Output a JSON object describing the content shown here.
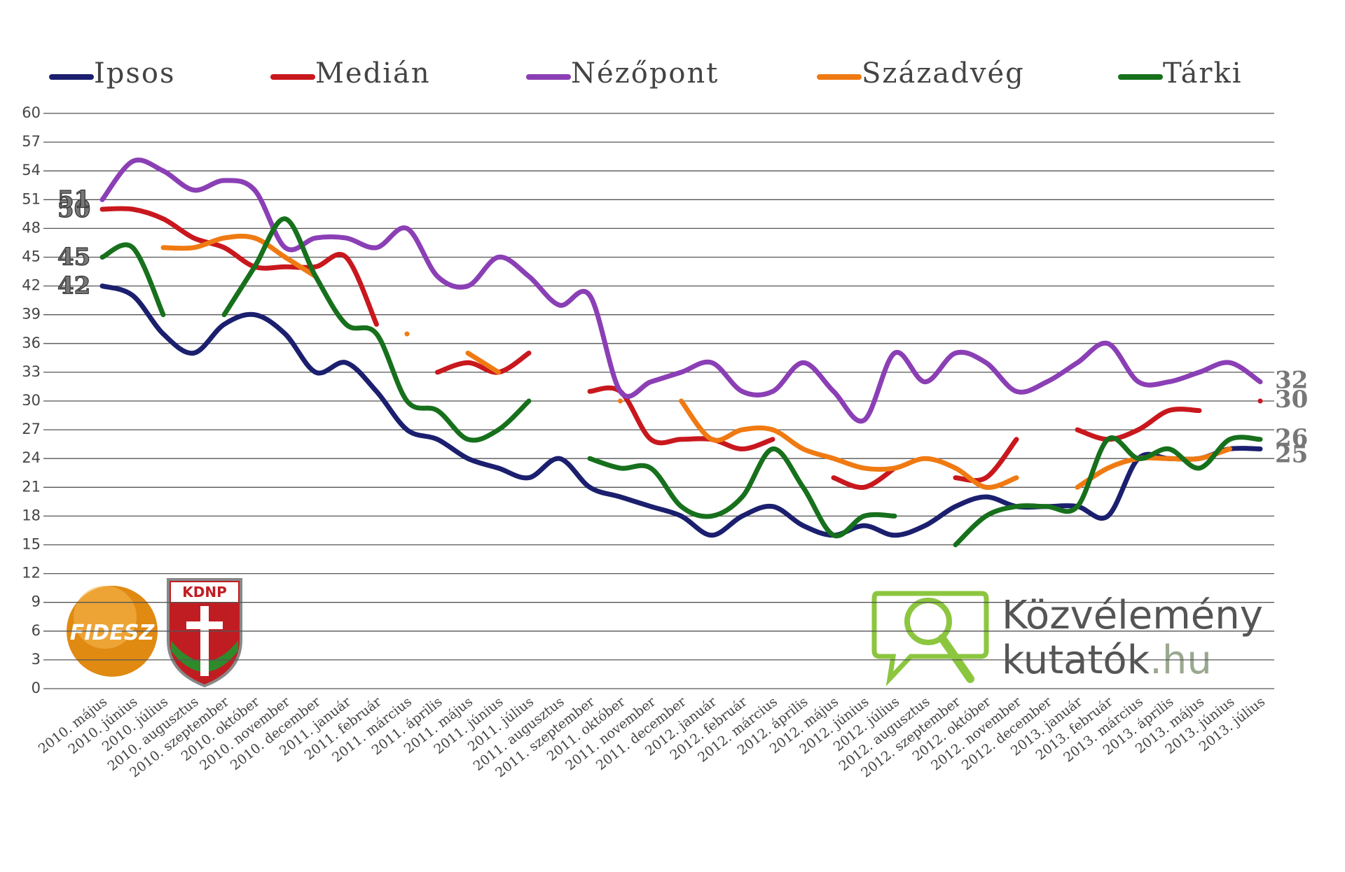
{
  "chart_data": {
    "type": "line",
    "categories": [
      "2010. május",
      "2010. június",
      "2010. július",
      "2010. augusztus",
      "2010. szeptember",
      "2010. október",
      "2010. november",
      "2010. december",
      "2011. január",
      "2011. február",
      "2011. március",
      "2011. április",
      "2011. május",
      "2011. június",
      "2011. július",
      "2011. augusztus",
      "2011. szeptember",
      "2011. október",
      "2011. november",
      "2011. december",
      "2012. január",
      "2012. február",
      "2012. március",
      "2012. április",
      "2012. május",
      "2012. június",
      "2012. július",
      "2012. augusztus",
      "2012. szeptember",
      "2012. október",
      "2012. november",
      "2012. december",
      "2013. január",
      "2013. február",
      "2013. március",
      "2013. április",
      "2013. május",
      "2013. június",
      "2013. július"
    ],
    "series": [
      {
        "name": "Ipsos",
        "color": "#1b1f6e",
        "values": [
          42,
          41,
          37,
          35,
          38,
          39,
          37,
          33,
          34,
          31,
          27,
          26,
          24,
          23,
          22,
          24,
          21,
          20,
          19,
          18,
          16,
          18,
          19,
          17,
          16,
          17,
          16,
          17,
          19,
          20,
          19,
          19,
          19,
          18,
          24,
          24,
          24,
          25,
          25
        ]
      },
      {
        "name": "Medián",
        "color": "#c8181e",
        "values": [
          50,
          50,
          49,
          47,
          46,
          44,
          44,
          44,
          45,
          38,
          null,
          33,
          34,
          33,
          35,
          null,
          31,
          31,
          26,
          26,
          26,
          25,
          26,
          null,
          22,
          21,
          23,
          null,
          22,
          22,
          26,
          null,
          27,
          26,
          27,
          29,
          29,
          null,
          30
        ]
      },
      {
        "name": "Nézőpont",
        "color": "#8b3fb5",
        "values": [
          51,
          55,
          54,
          52,
          53,
          52,
          46,
          47,
          47,
          46,
          48,
          43,
          42,
          45,
          43,
          40,
          41,
          31,
          32,
          33,
          34,
          31,
          31,
          34,
          31,
          28,
          35,
          32,
          35,
          34,
          31,
          32,
          34,
          36,
          32,
          32,
          33,
          34,
          32
        ]
      },
      {
        "name": "Századvég",
        "color": "#f07a12",
        "values": [
          null,
          null,
          46,
          46,
          47,
          47,
          45,
          43,
          null,
          null,
          37,
          null,
          35,
          33,
          null,
          null,
          null,
          30,
          null,
          30,
          26,
          27,
          27,
          25,
          24,
          23,
          23,
          24,
          23,
          21,
          22,
          null,
          21,
          23,
          24,
          24,
          24,
          25,
          null
        ]
      },
      {
        "name": "Tárki",
        "color": "#17701c",
        "values": [
          45,
          46,
          39,
          null,
          39,
          44,
          49,
          43,
          38,
          37,
          30,
          29,
          26,
          27,
          30,
          null,
          24,
          23,
          23,
          19,
          18,
          20,
          25,
          21,
          16,
          18,
          18,
          null,
          15,
          18,
          19,
          19,
          19,
          26,
          24,
          25,
          23,
          26,
          26
        ]
      }
    ],
    "ylim": [
      0,
      60
    ],
    "yticks": [
      0,
      3,
      6,
      9,
      12,
      15,
      18,
      21,
      24,
      27,
      30,
      33,
      36,
      39,
      42,
      45,
      48,
      51,
      54,
      57,
      60
    ],
    "grid": true,
    "legend": "top",
    "endpoint_labels": true
  },
  "logos": {
    "fidesz": "FIDESZ",
    "kdnp": "KDNP",
    "site_line1": "Közvélemény",
    "site_line2": "kutatók",
    "site_tld": ".hu"
  }
}
